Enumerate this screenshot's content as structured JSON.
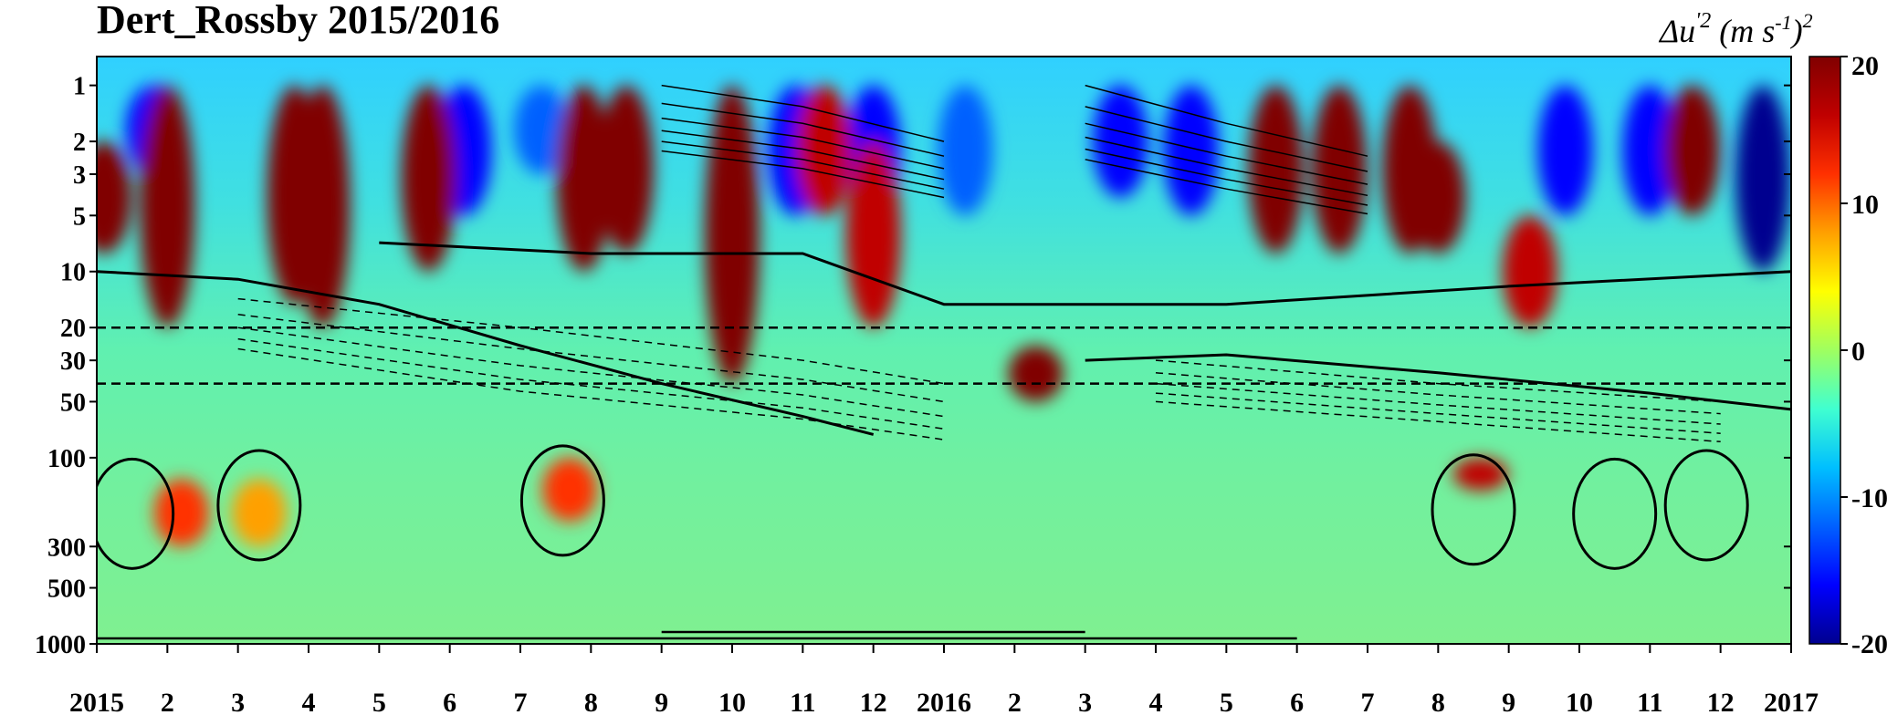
{
  "chart_data": {
    "type": "heatmap",
    "title": "Dert_Rossby 2015/2016",
    "x_tick_labels": [
      "2015",
      "2",
      "3",
      "4",
      "5",
      "6",
      "7",
      "8",
      "9",
      "10",
      "11",
      "12",
      "2016",
      "2",
      "3",
      "4",
      "5",
      "6",
      "7",
      "8",
      "9",
      "10",
      "11",
      "12",
      "2017"
    ],
    "y_tick_labels": [
      {
        "p": 1,
        "label": "1"
      },
      {
        "p": 2,
        "label": "2"
      },
      {
        "p": 3,
        "label": "3"
      },
      {
        "p": 5,
        "label": "5"
      },
      {
        "p": 10,
        "label": "10"
      },
      {
        "p": 20,
        "label": "20"
      },
      {
        "p": 30,
        "label": "30"
      },
      {
        "p": 50,
        "label": "50"
      },
      {
        "p": 100,
        "label": "100"
      },
      {
        "p": 300,
        "label": "300"
      },
      {
        "p": 500,
        "label": "500"
      },
      {
        "p": 1000,
        "label": "1000"
      }
    ],
    "ylim": [
      1000,
      0.7
    ],
    "y_scale": "log",
    "colorbar": {
      "label_text": "Δu'² (m s⁻¹)²",
      "ticks": [
        20,
        10,
        0,
        -10,
        -20
      ],
      "range": [
        -20,
        20
      ],
      "colors": [
        "#00008f",
        "#0000ff",
        "#0060ff",
        "#00bfff",
        "#40ffd0",
        "#9fff60",
        "#ffff00",
        "#ffa000",
        "#ff3000",
        "#c00000",
        "#800000"
      ]
    },
    "dashed_levels_hPa": [
      20,
      40
    ],
    "bottom_segments": [
      {
        "start_month": 0,
        "end_month": 17
      },
      {
        "start_month": 8,
        "end_month": 14
      }
    ],
    "hotspots": [
      {
        "month": 0.1,
        "p_top": 2,
        "p_bottom": 8,
        "value": 20
      },
      {
        "month": 1.0,
        "p_top": 1,
        "p_bottom": 20,
        "value": 20
      },
      {
        "month": 2.8,
        "p_top": 1,
        "p_bottom": 15,
        "value": 20
      },
      {
        "month": 3.2,
        "p_top": 1,
        "p_bottom": 20,
        "value": 20
      },
      {
        "month": 4.7,
        "p_top": 1,
        "p_bottom": 10,
        "value": 18
      },
      {
        "month": 6.9,
        "p_top": 1,
        "p_bottom": 10,
        "value": 20
      },
      {
        "month": 7.5,
        "p_top": 1,
        "p_bottom": 8,
        "value": 20
      },
      {
        "month": 9.0,
        "p_top": 1,
        "p_bottom": 40,
        "value": 20
      },
      {
        "month": 10.3,
        "p_top": 1,
        "p_bottom": 5,
        "value": 16
      },
      {
        "month": 11.0,
        "p_top": 2,
        "p_bottom": 20,
        "value": 15
      },
      {
        "month": 13.3,
        "p_top": 25,
        "p_bottom": 50,
        "value": 20
      },
      {
        "month": 16.7,
        "p_top": 1,
        "p_bottom": 8,
        "value": 20
      },
      {
        "month": 17.6,
        "p_top": 1,
        "p_bottom": 8,
        "value": 20
      },
      {
        "month": 18.6,
        "p_top": 1,
        "p_bottom": 8,
        "value": 20
      },
      {
        "month": 19.0,
        "p_top": 2,
        "p_bottom": 8,
        "value": 18
      },
      {
        "month": 20.3,
        "p_top": 5,
        "p_bottom": 20,
        "value": 16
      },
      {
        "month": 22.6,
        "p_top": 1,
        "p_bottom": 5,
        "value": 18
      },
      {
        "month": 6.7,
        "p_top": 100,
        "p_bottom": 220,
        "value": 12
      },
      {
        "month": 1.2,
        "p_top": 130,
        "p_bottom": 300,
        "value": 10
      },
      {
        "month": 2.3,
        "p_top": 130,
        "p_bottom": 300,
        "value": 8
      },
      {
        "month": 19.6,
        "p_top": 100,
        "p_bottom": 150,
        "value": 16
      }
    ],
    "cold_spots": [
      {
        "month": 0.8,
        "p_top": 1,
        "p_bottom": 3,
        "value": -15
      },
      {
        "month": 5.2,
        "p_top": 1,
        "p_bottom": 5,
        "value": -16
      },
      {
        "month": 6.3,
        "p_top": 1,
        "p_bottom": 3,
        "value": -14
      },
      {
        "month": 9.9,
        "p_top": 1,
        "p_bottom": 5,
        "value": -18
      },
      {
        "month": 11.0,
        "p_top": 1,
        "p_bottom": 5,
        "value": -18
      },
      {
        "month": 12.3,
        "p_top": 1,
        "p_bottom": 5,
        "value": -14
      },
      {
        "month": 14.5,
        "p_top": 1,
        "p_bottom": 4,
        "value": -15
      },
      {
        "month": 15.5,
        "p_top": 1,
        "p_bottom": 5,
        "value": -18
      },
      {
        "month": 20.8,
        "p_top": 1,
        "p_bottom": 5,
        "value": -16
      },
      {
        "month": 22.0,
        "p_top": 1,
        "p_bottom": 5,
        "value": -18
      },
      {
        "month": 23.6,
        "p_top": 1,
        "p_bottom": 10,
        "value": -20
      }
    ]
  }
}
